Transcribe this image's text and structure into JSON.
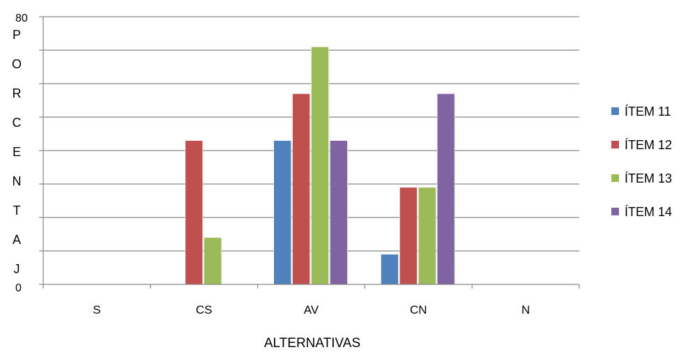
{
  "chart_data": {
    "type": "bar",
    "title": "",
    "xlabel": "ALTERNATIVAS",
    "ylabel_letters": [
      "P",
      "O",
      "R",
      "C",
      "E",
      "N",
      "T",
      "A",
      "J"
    ],
    "ytick_top": "80",
    "ytick_bottom": "0",
    "ylim": [
      0,
      80
    ],
    "grid": true,
    "legend_position": "right",
    "categories": [
      "S",
      "CS",
      "AV",
      "CN",
      "N"
    ],
    "series": [
      {
        "name": "ÍTEM 11",
        "color": "#4F81BD",
        "values": [
          0,
          0,
          43,
          9,
          0
        ]
      },
      {
        "name": "ÍTEM 12",
        "color": "#C0504D",
        "values": [
          0,
          43,
          57,
          29,
          0
        ]
      },
      {
        "name": "ÍTEM 13",
        "color": "#9BBB59",
        "values": [
          0,
          14,
          71,
          29,
          0
        ]
      },
      {
        "name": "ÍTEM 14",
        "color": "#8064A2",
        "values": [
          0,
          0,
          43,
          57,
          0
        ]
      }
    ]
  }
}
